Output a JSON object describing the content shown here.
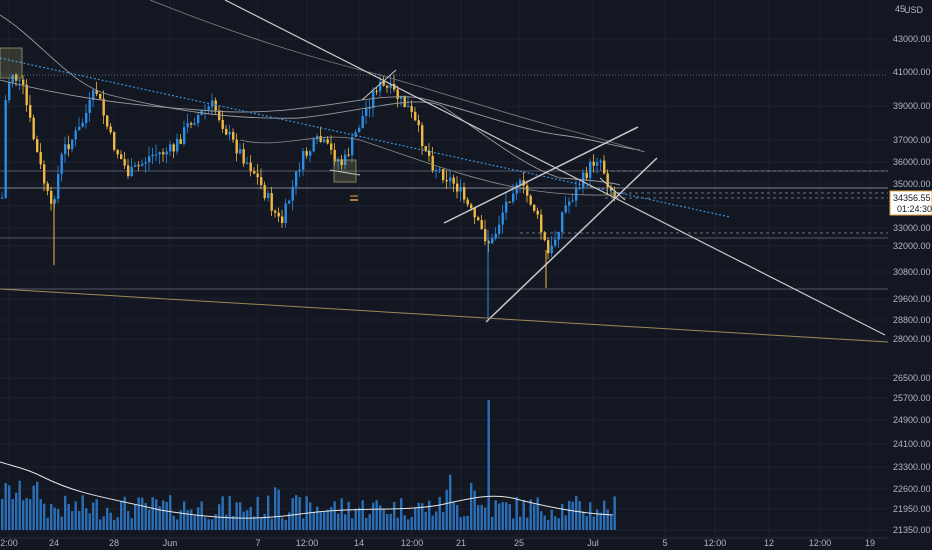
{
  "chart_data": {
    "type": "candlestick",
    "currency": "USD",
    "price_axis": {
      "ticks": [
        "43000.00",
        "41000.00",
        "39000.00",
        "37000.00",
        "36000.00",
        "35000.00",
        "34000.00",
        "33000.00",
        "32000.00",
        "30800.00",
        "29600.00",
        "28800.00",
        "28000.00",
        "26500.00",
        "25700.00",
        "24900.00",
        "24100.00",
        "23300.00",
        "22600.00",
        "21950.00",
        "21350.00"
      ],
      "top_partial": "45"
    },
    "time_axis": {
      "ticks": [
        "2:00",
        "24",
        "28",
        "Jun",
        "7",
        "12:00",
        "14",
        "12:00",
        "21",
        "25",
        "Jul",
        "5",
        "12:00",
        "12",
        "12:00",
        "19"
      ]
    },
    "last_price": "34356.55",
    "countdown": "01:24:30",
    "colors": {
      "up": "#2a8ee6",
      "down": "#f0b840",
      "background": "#131722",
      "grid": "#1e222d",
      "trendline": "#c8c8c8",
      "dotted_trend": "#3b8fd8",
      "orange_line": "#a08a55",
      "volume": "#2f7fd0",
      "ma": "#9a9a9a"
    }
  }
}
